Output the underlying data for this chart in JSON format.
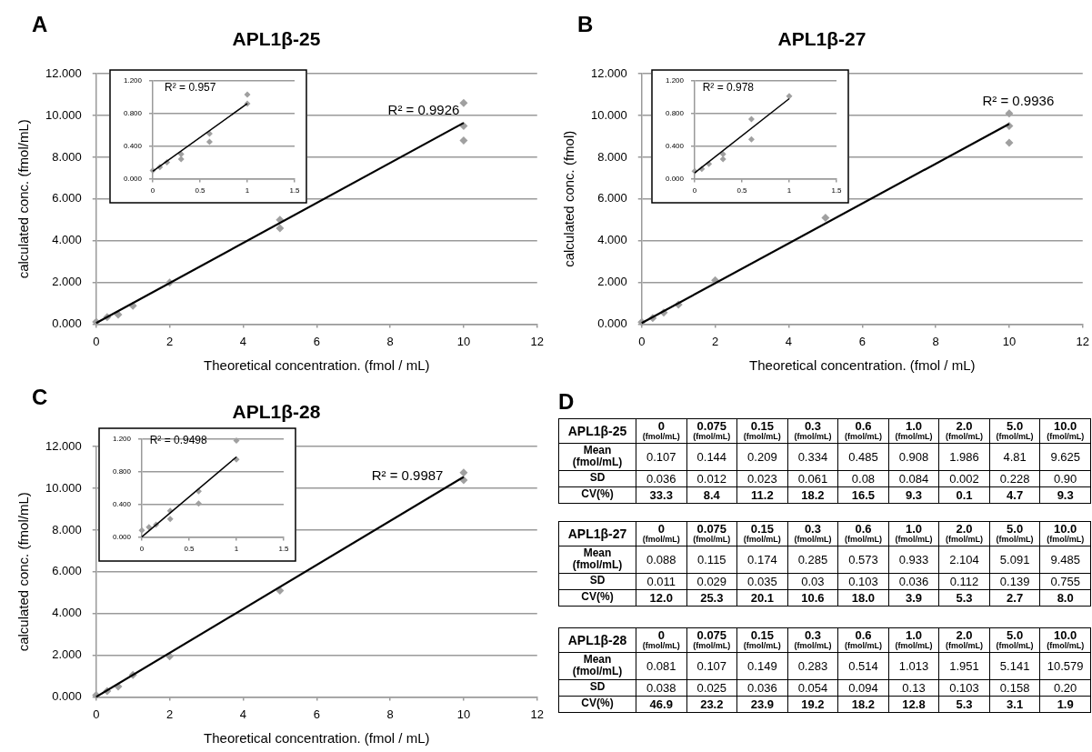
{
  "chart_data": [
    {
      "type": "scatter",
      "title": "APL1β-25",
      "xlabel": "Theoretical concentration. (fmol / mL)",
      "ylabel": "calculated conc. (fmol/mL)",
      "xlim": [
        0,
        12
      ],
      "xticks": [
        0,
        2,
        4,
        6,
        8,
        10,
        12
      ],
      "ylim": [
        0,
        12
      ],
      "yticks": [
        {
          "value": 0,
          "label": "0.000"
        },
        {
          "value": 2,
          "label": "2.000"
        },
        {
          "value": 4,
          "label": "4.000"
        },
        {
          "value": 6,
          "label": "6.000"
        },
        {
          "value": 8,
          "label": "8.000"
        },
        {
          "value": 10,
          "label": "10.000"
        },
        {
          "value": 12,
          "label": "12.000"
        }
      ],
      "grid": "y",
      "annotations": [
        "A",
        "R² = 0.9926"
      ],
      "series": [
        {
          "type": "scatter",
          "marker": "diamond",
          "color": "#a0a0a0",
          "x": [
            0,
            0.3,
            0.6,
            1,
            2,
            5,
            5,
            10,
            10,
            10
          ],
          "values": [
            0.1,
            0.33,
            0.45,
            0.88,
            1.99,
            5.0,
            4.6,
            10.6,
            9.5,
            8.8
          ]
        },
        {
          "type": "line",
          "marker": "none",
          "color": "#000000",
          "x": [
            0,
            10
          ],
          "values": [
            0.05,
            9.65
          ]
        }
      ]
    },
    {
      "type": "scatter",
      "xlim": [
        0,
        1.5
      ],
      "xticks": [
        0,
        0.5,
        1,
        1.5
      ],
      "ylim": [
        0,
        1.2
      ],
      "yticks": [
        {
          "value": 0,
          "label": "0.000"
        },
        {
          "value": 0.4,
          "label": "0.400"
        },
        {
          "value": 0.8,
          "label": "0.800"
        },
        {
          "value": 1.2,
          "label": "1.200"
        }
      ],
      "grid": "y",
      "annotations": [
        "R² = 0.957"
      ],
      "series": [
        {
          "type": "scatter",
          "marker": "diamond",
          "color": "#a0a0a0",
          "x": [
            0,
            0.075,
            0.15,
            0.3,
            0.3,
            0.6,
            0.6,
            1,
            1
          ],
          "values": [
            0.1,
            0.14,
            0.2,
            0.3,
            0.24,
            0.55,
            0.45,
            1.03,
            0.92
          ]
        },
        {
          "type": "line",
          "marker": "none",
          "color": "#000000",
          "x": [
            0,
            1
          ],
          "values": [
            0.09,
            0.92
          ]
        }
      ]
    },
    {
      "type": "scatter",
      "title": "APL1β-27",
      "xlabel": "Theoretical concentration. (fmol / mL)",
      "ylabel": "calculated conc. (fmol)",
      "xlim": [
        0,
        12
      ],
      "xticks": [
        0,
        2,
        4,
        6,
        8,
        10,
        12
      ],
      "ylim": [
        0,
        12
      ],
      "yticks": [
        {
          "value": 0,
          "label": "0.000"
        },
        {
          "value": 2,
          "label": "2.000"
        },
        {
          "value": 4,
          "label": "4.000"
        },
        {
          "value": 6,
          "label": "6.000"
        },
        {
          "value": 8,
          "label": "8.000"
        },
        {
          "value": 10,
          "label": "10.000"
        },
        {
          "value": 12,
          "label": "12.000"
        }
      ],
      "grid": "y",
      "annotations": [
        "B",
        "R² = 0.9936"
      ],
      "series": [
        {
          "type": "scatter",
          "marker": "diamond",
          "color": "#a0a0a0",
          "x": [
            0,
            0.3,
            0.6,
            1,
            2,
            5,
            10,
            10,
            10
          ],
          "values": [
            0.09,
            0.29,
            0.55,
            0.93,
            2.1,
            5.1,
            10.1,
            9.5,
            8.7
          ]
        },
        {
          "type": "line",
          "marker": "none",
          "color": "#000000",
          "x": [
            0,
            10
          ],
          "values": [
            0.05,
            9.6
          ]
        }
      ]
    },
    {
      "type": "scatter",
      "xlim": [
        0,
        1.5
      ],
      "xticks": [
        0,
        0.5,
        1,
        1.5
      ],
      "ylim": [
        0,
        1.2
      ],
      "yticks": [
        {
          "value": 0,
          "label": "0.000"
        },
        {
          "value": 0.4,
          "label": "0.400"
        },
        {
          "value": 0.8,
          "label": "0.800"
        },
        {
          "value": 1.2,
          "label": "1.200"
        }
      ],
      "grid": "y",
      "annotations": [
        "R² = 0.978"
      ],
      "series": [
        {
          "type": "scatter",
          "marker": "diamond",
          "color": "#a0a0a0",
          "x": [
            0,
            0.075,
            0.15,
            0.3,
            0.3,
            0.6,
            0.6,
            1
          ],
          "values": [
            0.09,
            0.12,
            0.18,
            0.3,
            0.24,
            0.73,
            0.48,
            1.01
          ]
        },
        {
          "type": "line",
          "marker": "none",
          "color": "#000000",
          "x": [
            0,
            1
          ],
          "values": [
            0.07,
            0.98
          ]
        }
      ]
    },
    {
      "type": "scatter",
      "title": "APL1β-28",
      "xlabel": "Theoretical concentration. (fmol / mL)",
      "ylabel": "calculated conc. (fmol/mL)",
      "xlim": [
        0,
        12
      ],
      "xticks": [
        0,
        2,
        4,
        6,
        8,
        10,
        12
      ],
      "ylim": [
        0,
        12
      ],
      "yticks": [
        {
          "value": 0,
          "label": "0.000"
        },
        {
          "value": 2,
          "label": "2.000"
        },
        {
          "value": 4,
          "label": "4.000"
        },
        {
          "value": 6,
          "label": "6.000"
        },
        {
          "value": 8,
          "label": "8.000"
        },
        {
          "value": 10,
          "label": "10.000"
        },
        {
          "value": 12,
          "label": "12.000"
        }
      ],
      "grid": "y",
      "annotations": [
        "C",
        "R² = 0.9987"
      ],
      "series": [
        {
          "type": "scatter",
          "marker": "diamond",
          "color": "#a0a0a0",
          "x": [
            0,
            0.3,
            0.6,
            1,
            2,
            5,
            10,
            10
          ],
          "values": [
            0.08,
            0.28,
            0.5,
            1.05,
            1.95,
            5.1,
            10.75,
            10.4
          ]
        },
        {
          "type": "line",
          "marker": "none",
          "color": "#000000",
          "x": [
            0,
            10
          ],
          "values": [
            0.0,
            10.55
          ]
        }
      ]
    },
    {
      "type": "scatter",
      "xlim": [
        0,
        1.5
      ],
      "xticks": [
        0,
        0.5,
        1,
        1.5
      ],
      "ylim": [
        0,
        1.2
      ],
      "yticks": [
        {
          "value": 0,
          "label": "0.000"
        },
        {
          "value": 0.4,
          "label": "0.400"
        },
        {
          "value": 0.8,
          "label": "0.800"
        },
        {
          "value": 1.2,
          "label": "1.200"
        }
      ],
      "grid": "y",
      "annotations": [
        "R² = 0.9498"
      ],
      "series": [
        {
          "type": "scatter",
          "marker": "diamond",
          "color": "#a0a0a0",
          "x": [
            0,
            0.075,
            0.15,
            0.3,
            0.3,
            0.6,
            0.6,
            1,
            1
          ],
          "values": [
            0.08,
            0.12,
            0.15,
            0.32,
            0.22,
            0.56,
            0.41,
            1.18,
            0.95
          ]
        },
        {
          "type": "line",
          "marker": "none",
          "color": "#000000",
          "x": [
            0,
            1
          ],
          "values": [
            0.0,
            0.98
          ]
        }
      ]
    },
    {
      "type": "other",
      "title": "APL1β-25",
      "annotations": [
        "D"
      ],
      "xlabel": "(fmol/mL)",
      "categories": [
        "0",
        "0.075",
        "0.15",
        "0.3",
        "0.6",
        "1.0",
        "2.0",
        "5.0",
        "10.0"
      ],
      "y_categories": [
        "Mean (fmol/mL)",
        "SD",
        "CV(%)"
      ],
      "cell_labels": [
        [
          "0.107",
          "0.144",
          "0.209",
          "0.334",
          "0.485",
          "0.908",
          "1.986",
          "4.81",
          "9.625"
        ],
        [
          "0.036",
          "0.012",
          "0.023",
          "0.061",
          "0.08",
          "0.084",
          "0.002",
          "0.228",
          "0.90"
        ],
        [
          "33.3",
          "8.4",
          "11.2",
          "18.2",
          "16.5",
          "9.3",
          "0.1",
          "4.7",
          "9.3"
        ]
      ]
    },
    {
      "type": "other",
      "title": "APL1β-27",
      "xlabel": "(fmol/mL)",
      "categories": [
        "0",
        "0.075",
        "0.15",
        "0.3",
        "0.6",
        "1.0",
        "2.0",
        "5.0",
        "10.0"
      ],
      "y_categories": [
        "Mean (fmol/mL)",
        "SD",
        "CV(%)"
      ],
      "cell_labels": [
        [
          "0.088",
          "0.115",
          "0.174",
          "0.285",
          "0.573",
          "0.933",
          "2.104",
          "5.091",
          "9.485"
        ],
        [
          "0.011",
          "0.029",
          "0.035",
          "0.03",
          "0.103",
          "0.036",
          "0.112",
          "0.139",
          "0.755"
        ],
        [
          "12.0",
          "25.3",
          "20.1",
          "10.6",
          "18.0",
          "3.9",
          "5.3",
          "2.7",
          "8.0"
        ]
      ]
    },
    {
      "type": "other",
      "title": "APL1β-28",
      "xlabel": "(fmol/mL)",
      "categories": [
        "0",
        "0.075",
        "0.15",
        "0.3",
        "0.6",
        "1.0",
        "2.0",
        "5.0",
        "10.0"
      ],
      "y_categories": [
        "Mean (fmol/mL)",
        "SD",
        "CV(%)"
      ],
      "cell_labels": [
        [
          "0.081",
          "0.107",
          "0.149",
          "0.283",
          "0.514",
          "1.013",
          "1.951",
          "5.141",
          "10.579"
        ],
        [
          "0.038",
          "0.025",
          "0.036",
          "0.054",
          "0.094",
          "0.13",
          "0.103",
          "0.158",
          "0.20"
        ],
        [
          "46.9",
          "23.2",
          "23.9",
          "19.2",
          "18.2",
          "12.8",
          "5.3",
          "3.1",
          "1.9"
        ]
      ]
    }
  ]
}
